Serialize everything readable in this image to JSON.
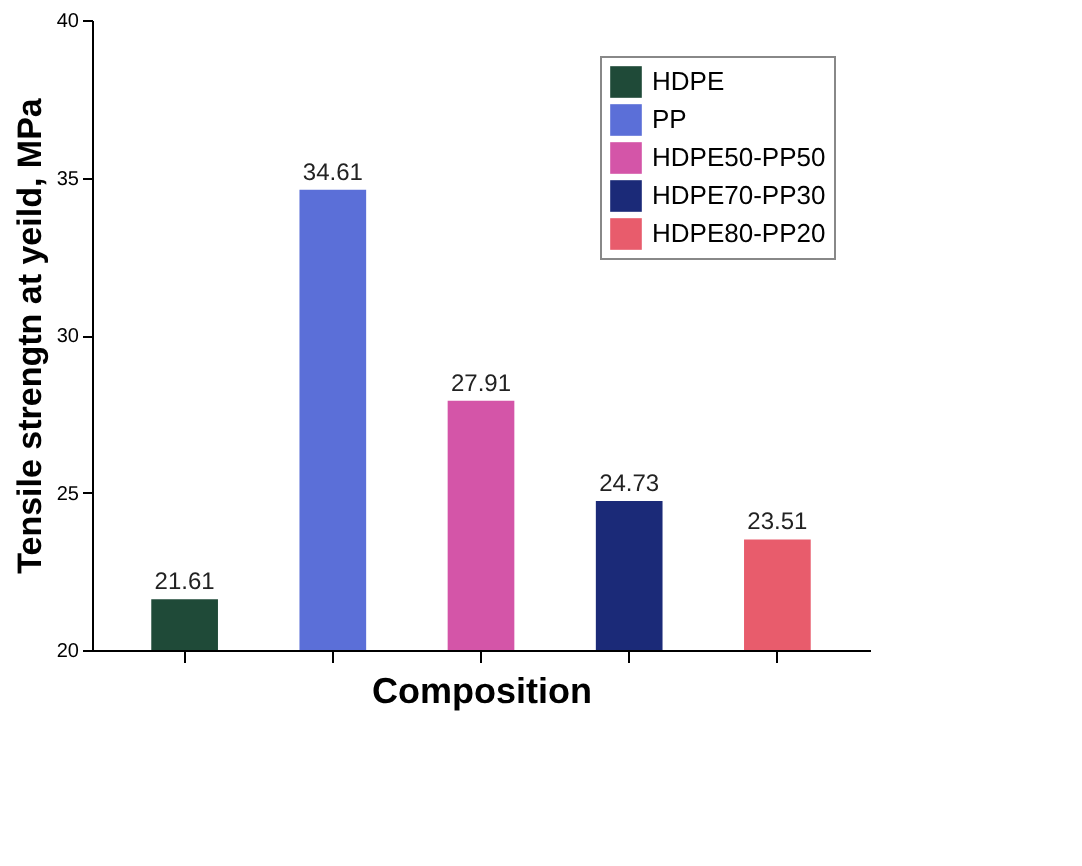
{
  "chart_data": {
    "type": "bar",
    "xlabel": "Composition",
    "ylabel": "Tensile strengtn at yeild, MPa",
    "categories": [
      null,
      null,
      null,
      null,
      null
    ],
    "series": [
      {
        "name": "HDPE",
        "color": "#1f4a38",
        "values": [
          21.61,
          null,
          null,
          null,
          null
        ]
      },
      {
        "name": "PP",
        "color": "#5b6fd8",
        "values": [
          null,
          34.61,
          null,
          null,
          null
        ]
      },
      {
        "name": "HDPE50-PP50",
        "color": "#d455a8",
        "values": [
          null,
          null,
          27.91,
          null,
          null
        ]
      },
      {
        "name": "HDPE70-PP30",
        "color": "#1b2a78",
        "values": [
          null,
          null,
          null,
          24.73,
          null
        ]
      },
      {
        "name": "HDPE80-PP20",
        "color": "#e85c6c",
        "values": [
          null,
          null,
          null,
          null,
          23.51
        ]
      }
    ],
    "ylim": [
      20,
      40
    ],
    "yticks": [
      20,
      25,
      30,
      35,
      40
    ],
    "data_labels": true,
    "legend": "top right",
    "grid": false
  }
}
